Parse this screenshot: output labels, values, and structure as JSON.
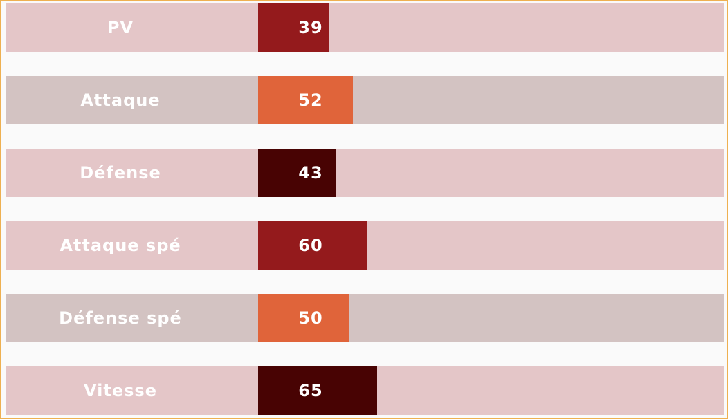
{
  "colors": {
    "border": "#eeb051",
    "gap": "#fafafa",
    "track_pink": "#e4c6c8",
    "track_gray": "#d3c3c2",
    "bar_red": "#941a1c",
    "bar_orange": "#e0643a",
    "bar_dark": "#480303",
    "text": "#ffffff"
  },
  "chart_data": {
    "type": "bar",
    "orientation": "horizontal",
    "categories": [
      "PV",
      "Attaque",
      "Défense",
      "Attaque spé",
      "Défense spé",
      "Vitesse"
    ],
    "values": [
      39,
      52,
      43,
      60,
      50,
      65
    ],
    "value_labels": [
      "39",
      "52",
      "43",
      "60",
      "50",
      "65"
    ],
    "xlim": [
      0,
      255
    ],
    "grid": false,
    "legend": "none",
    "bar_colors": [
      "#941a1c",
      "#e0643a",
      "#480303",
      "#941a1c",
      "#e0643a",
      "#480303"
    ],
    "track_colors": [
      "#e4c6c8",
      "#d3c3c2",
      "#e4c6c8",
      "#e4c6c8",
      "#d3c3c2",
      "#e4c6c8"
    ]
  }
}
